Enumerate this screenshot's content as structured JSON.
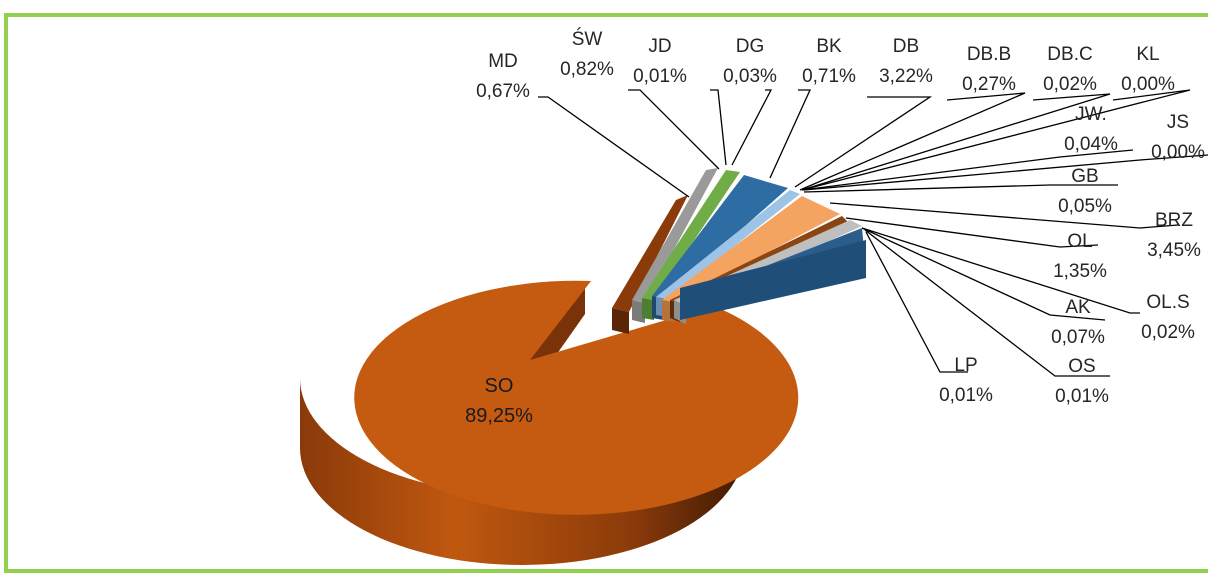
{
  "colors": {
    "border": "#92d050",
    "so_top": "#c55a11",
    "so_side_dark": "#4e2106",
    "so_side_light": "#b85610",
    "blue": "#1f4e79",
    "blue_side": "#163a5c",
    "gray": "#b0b0b0",
    "green": "#70ad47",
    "orange": "#f4a460",
    "brown": "#8b4513"
  },
  "chart_data": {
    "type": "pie",
    "style": "3d-exploded",
    "slices": [
      {
        "label": "SO",
        "value": 89.25,
        "text": "89,25%"
      },
      {
        "label": "MD",
        "value": 0.67,
        "text": "0,67%"
      },
      {
        "label": "ŚW",
        "value": 0.82,
        "text": "0,82%"
      },
      {
        "label": "JD",
        "value": 0.01,
        "text": "0,01%"
      },
      {
        "label": "DG",
        "value": 0.03,
        "text": "0,03%"
      },
      {
        "label": "BK",
        "value": 0.71,
        "text": "0,71%"
      },
      {
        "label": "DB",
        "value": 3.22,
        "text": "3,22%"
      },
      {
        "label": "DB.B",
        "value": 0.27,
        "text": "0,27%"
      },
      {
        "label": "DB.C",
        "value": 0.02,
        "text": "0,02%"
      },
      {
        "label": "KL",
        "value": 0.0,
        "text": "0,00%"
      },
      {
        "label": "JW.",
        "value": 0.04,
        "text": "0,04%"
      },
      {
        "label": "JS",
        "value": 0.0,
        "text": "0,00%"
      },
      {
        "label": "GB",
        "value": 0.05,
        "text": "0,05%"
      },
      {
        "label": "BRZ",
        "value": 3.45,
        "text": "3,45%"
      },
      {
        "label": "OL",
        "value": 1.35,
        "text": "1,35%"
      },
      {
        "label": "OL.S",
        "value": 0.02,
        "text": "0,02%"
      },
      {
        "label": "AK",
        "value": 0.07,
        "text": "0,07%"
      },
      {
        "label": "OS",
        "value": 0.01,
        "text": "0,01%"
      },
      {
        "label": "LP",
        "value": 0.01,
        "text": "0,01%"
      }
    ]
  }
}
